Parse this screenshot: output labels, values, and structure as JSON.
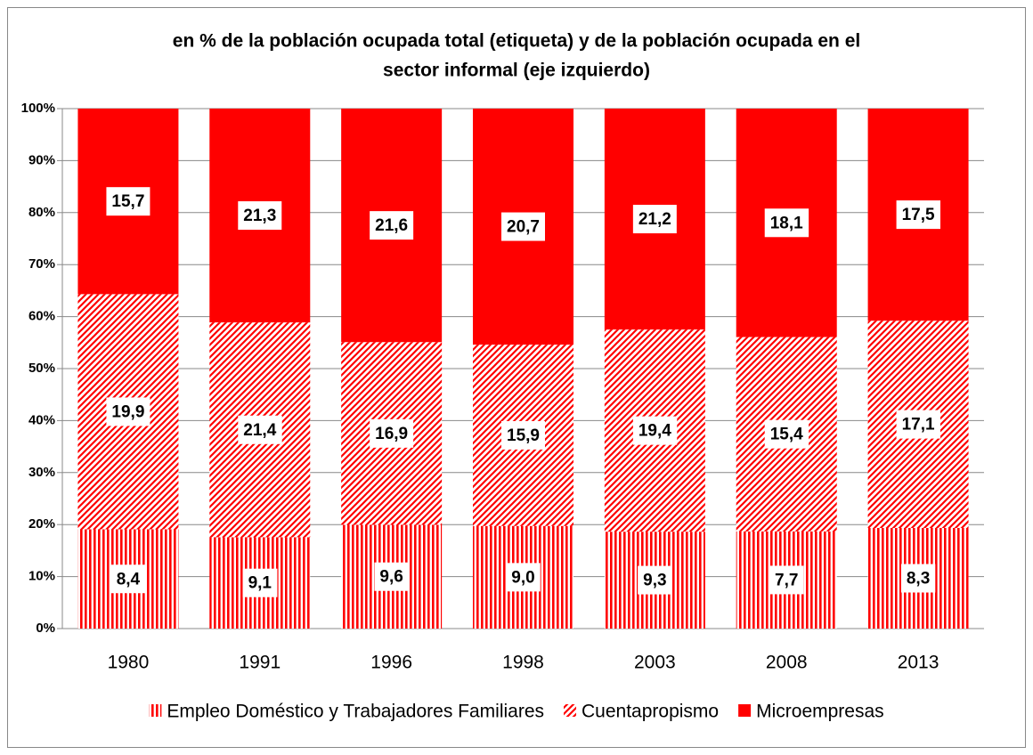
{
  "chart_data": {
    "type": "bar",
    "stacking": "percent",
    "title": [
      "en % de la población ocupada total (etiqueta) y de la población ocupada en el",
      "sector informal (eje izquierdo)"
    ],
    "categories": [
      "1980",
      "1991",
      "1996",
      "1998",
      "2003",
      "2008",
      "2013"
    ],
    "series": [
      {
        "name": "Empleo Doméstico y Trabajadores Familiares",
        "color": "#ff0000",
        "pattern": "vertical",
        "values": [
          8.4,
          9.1,
          9.6,
          9.0,
          9.3,
          7.7,
          8.3
        ],
        "value_labels": [
          "8,4",
          "9,1",
          "9,6",
          "9,0",
          "9,3",
          "7,7",
          "8,3"
        ]
      },
      {
        "name": "Cuentapropismo",
        "color": "#ff0000",
        "pattern": "diagonal",
        "values": [
          19.9,
          21.4,
          16.9,
          15.9,
          19.4,
          15.4,
          17.1
        ],
        "value_labels": [
          "19,9",
          "21,4",
          "16,9",
          "15,9",
          "19,4",
          "15,4",
          "17,1"
        ]
      },
      {
        "name": "Microempresas",
        "color": "#ff0000",
        "pattern": "solid",
        "values": [
          15.7,
          21.3,
          21.6,
          20.7,
          21.2,
          18.1,
          17.5
        ],
        "value_labels": [
          "15,7",
          "21,3",
          "21,6",
          "20,7",
          "21,2",
          "18,1",
          "17,5"
        ]
      }
    ],
    "ylim": [
      0,
      100
    ],
    "yticks": [
      {
        "value": 0,
        "label": "0%"
      },
      {
        "value": 10,
        "label": "10%"
      },
      {
        "value": 20,
        "label": "20%"
      },
      {
        "value": 30,
        "label": "30%"
      },
      {
        "value": 40,
        "label": "40%"
      },
      {
        "value": 50,
        "label": "50%"
      },
      {
        "value": 60,
        "label": "60%"
      },
      {
        "value": 70,
        "label": "70%"
      },
      {
        "value": 80,
        "label": "80%"
      },
      {
        "value": 90,
        "label": "90%"
      },
      {
        "value": 100,
        "label": "100%"
      }
    ],
    "grid": true,
    "legend": "bottom"
  }
}
